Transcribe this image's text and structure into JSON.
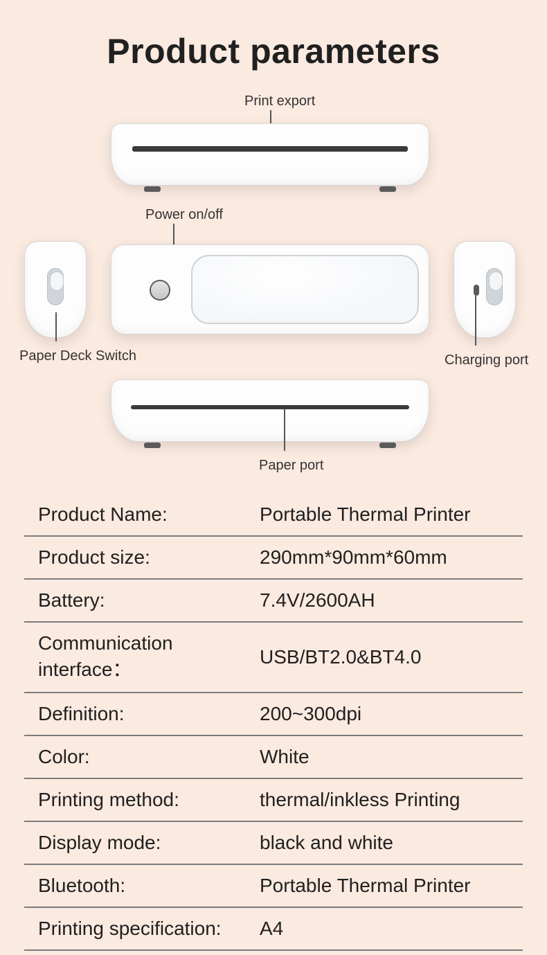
{
  "title": "Product parameters",
  "diagram": {
    "labels": {
      "print_export": "Print export",
      "power": "Power on/off",
      "paper_deck": "Paper Deck Switch",
      "charging": "Charging port",
      "paper_port": "Paper port"
    }
  },
  "specs": [
    {
      "label": "Product Name:",
      "value": "Portable Thermal Printer"
    },
    {
      "label": "Product size:",
      "value": "290mm*90mm*60mm"
    },
    {
      "label": "Battery:",
      "value": "7.4V/2600AH"
    },
    {
      "label": "Communication interface：",
      "value": "USB/BT2.0&BT4.0"
    },
    {
      "label": "Definition:",
      "value": "200~300dpi"
    },
    {
      "label": "Color:",
      "value": "White"
    },
    {
      "label": "Printing method:",
      "value": "thermal/inkless Printing"
    },
    {
      "label": "Display mode:",
      "value": "black and white"
    },
    {
      "label": "Bluetooth:",
      "value": "Portable Thermal Printer"
    },
    {
      "label": "Printing specification:",
      "value": "A4"
    }
  ],
  "colors": {
    "background": "#fbeae0",
    "device": "#fdfdfd",
    "slot": "#3a3a3a",
    "text": "#202020",
    "rule": "#7b7b7b"
  }
}
